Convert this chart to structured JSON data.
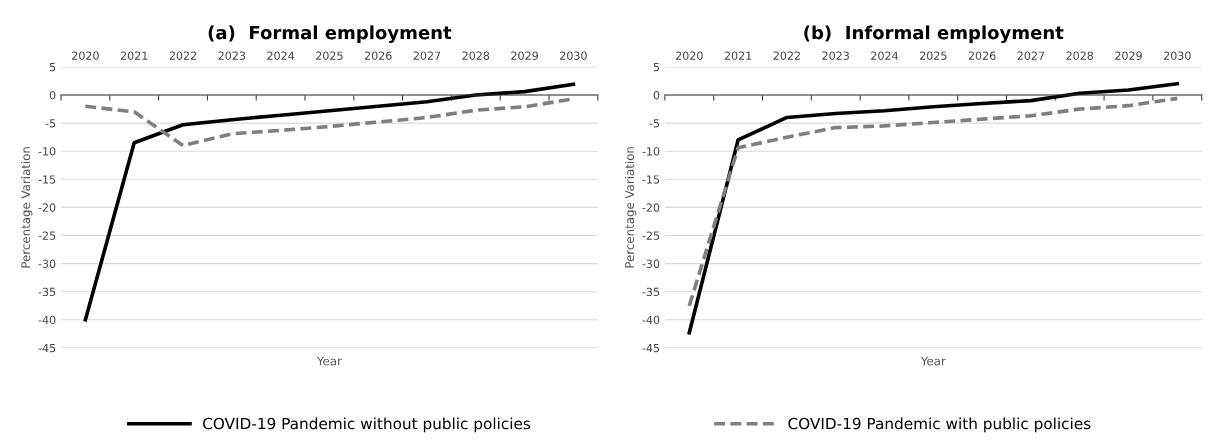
{
  "chart_data": [
    {
      "type": "line",
      "title": "(a)  Formal employment",
      "xlabel": "Year",
      "ylabel": "Percentage Variation",
      "categories": [
        "2020",
        "2021",
        "2022",
        "2023",
        "2024",
        "2025",
        "2026",
        "2027",
        "2028",
        "2029",
        "2030"
      ],
      "series": [
        {
          "name": "COVID-19 Pandemic without public policies",
          "color": "#000000",
          "line_style": "solid",
          "values": [
            -40,
            -8.5,
            -5.3,
            -4.4,
            -3.6,
            -2.8,
            -2,
            -1.2,
            0,
            0.6,
            1.9
          ]
        },
        {
          "name": "COVID-19 Pandemic with public policies",
          "color": "#7f7f7f",
          "line_style": "dashed",
          "values": [
            -2,
            -3,
            -9,
            -6.9,
            -6.3,
            -5.6,
            -4.8,
            -4,
            -2.7,
            -2.1,
            -0.7
          ]
        }
      ],
      "ylim": [
        -45,
        5
      ],
      "yticks": [
        -45,
        -40,
        -35,
        -30,
        -25,
        -20,
        -15,
        -10,
        -5,
        0,
        5
      ],
      "grid": "y",
      "legend": "bottom"
    },
    {
      "type": "line",
      "title": "(b)  Informal employment",
      "xlabel": "Year",
      "ylabel": "Percentage Variation",
      "categories": [
        "2020",
        "2021",
        "2022",
        "2023",
        "2024",
        "2025",
        "2026",
        "2027",
        "2028",
        "2029",
        "2030"
      ],
      "series": [
        {
          "name": "COVID-19 Pandemic without public policies",
          "color": "#000000",
          "line_style": "solid",
          "values": [
            -42.3,
            -8,
            -4,
            -3.3,
            -2.8,
            -2.1,
            -1.5,
            -1,
            0.3,
            0.9,
            2
          ]
        },
        {
          "name": "COVID-19 Pandemic with public policies",
          "color": "#7f7f7f",
          "line_style": "dashed",
          "values": [
            -37.5,
            -9.4,
            -7.5,
            -5.8,
            -5.5,
            -4.9,
            -4.3,
            -3.7,
            -2.5,
            -1.9,
            -0.6
          ]
        }
      ],
      "ylim": [
        -45,
        5
      ],
      "yticks": [
        -45,
        -40,
        -35,
        -30,
        -25,
        -20,
        -15,
        -10,
        -5,
        0,
        5
      ],
      "grid": "y",
      "legend": "bottom"
    }
  ]
}
